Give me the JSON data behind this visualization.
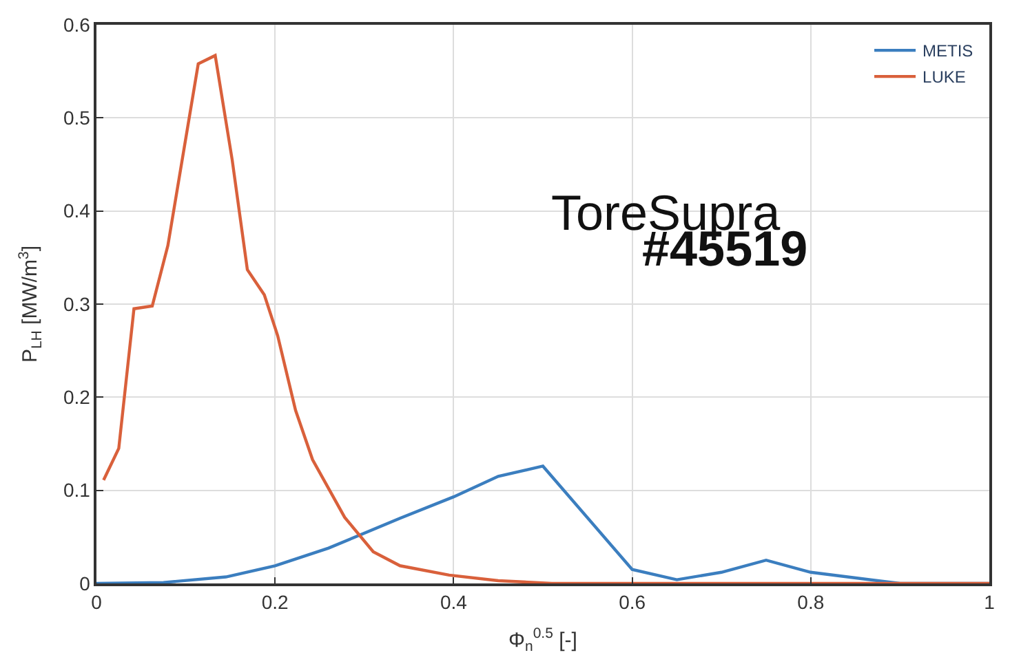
{
  "chart_data": {
    "type": "line",
    "xlabel": "Φ$_{n}$$^{0.5}$ [-]",
    "ylabel": "P$_{LH}$ [MW/m$^{3}$]",
    "annotations": [
      "ToreSupra",
      "#45519"
    ],
    "xlim": [
      0,
      1
    ],
    "xticks": [
      0,
      0.2,
      0.4,
      0.6,
      0.8,
      1
    ],
    "ylim": [
      0,
      0.6
    ],
    "yticks": [
      0,
      0.1,
      0.2,
      0.3,
      0.4,
      0.5,
      0.6
    ],
    "grid": true,
    "legend": "top right",
    "marker": "none",
    "line_style": "solid",
    "series": [
      {
        "name": "METIS",
        "color": "#3b7ebf",
        "x": [
          0,
          0.075,
          0.145,
          0.2,
          0.26,
          0.34,
          0.4,
          0.45,
          0.5,
          0.6,
          0.65,
          0.7,
          0.75,
          0.8,
          0.9,
          1
        ],
        "values": [
          0,
          0.001,
          0.007,
          0.019,
          0.038,
          0.07,
          0.093,
          0.115,
          0.126,
          0.015,
          0.004,
          0.012,
          0.025,
          0.012,
          0,
          0
        ]
      },
      {
        "name": "LUKE",
        "color": "#d9603b",
        "x": [
          0.008,
          0.025,
          0.042,
          0.0625,
          0.08,
          0.114,
          0.133,
          0.152,
          0.169,
          0.188,
          0.203,
          0.223,
          0.242,
          0.278,
          0.31,
          0.34,
          0.395,
          0.45,
          0.51,
          1
        ],
        "values": [
          0.111,
          0.145,
          0.295,
          0.298,
          0.363,
          0.558,
          0.567,
          0.455,
          0.337,
          0.31,
          0.266,
          0.186,
          0.133,
          0.071,
          0.034,
          0.019,
          0.009,
          0.003,
          0,
          0
        ]
      }
    ]
  }
}
